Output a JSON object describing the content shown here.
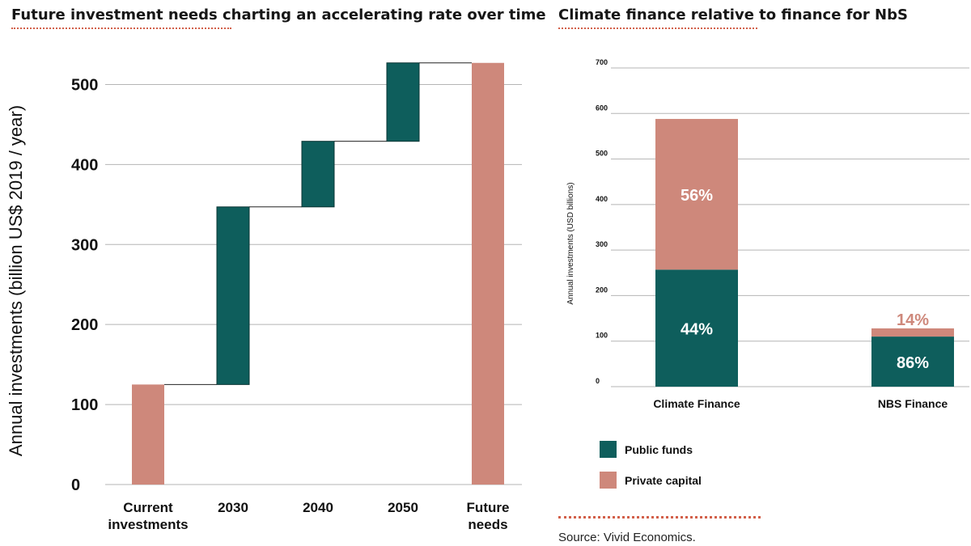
{
  "colors": {
    "public": "#0e5e5c",
    "private": "#ce887b",
    "grid": "#b5b5b5",
    "accent_dots": "#d2604a"
  },
  "left_title": "Future investment needs charting an accelerating rate over time",
  "right_title": "Climate finance relative to finance for NbS",
  "source": "Source: Vivid Economics.",
  "chart_data": [
    {
      "type": "bar",
      "subtype": "waterfall",
      "title": "Future investment needs charting an accelerating rate over time",
      "xlabel": "",
      "ylabel": "Annual investments (billion US$ 2019 / year)",
      "ylim": [
        0,
        550
      ],
      "yticks": [
        0,
        100,
        200,
        300,
        400,
        500
      ],
      "grid": true,
      "categories": [
        [
          "Current",
          "investments"
        ],
        [
          "2030"
        ],
        [
          "2040"
        ],
        [
          "2050"
        ],
        [
          "Future",
          "needs"
        ]
      ],
      "bars": [
        {
          "base": 0,
          "top": 125,
          "kind": "total"
        },
        {
          "base": 125,
          "top": 347,
          "kind": "increment"
        },
        {
          "base": 347,
          "top": 429,
          "kind": "increment"
        },
        {
          "base": 429,
          "top": 527,
          "kind": "increment"
        },
        {
          "base": 0,
          "top": 527,
          "kind": "total"
        }
      ]
    },
    {
      "type": "bar",
      "subtype": "stacked",
      "title": "Climate finance relative to finance for NbS",
      "xlabel": "",
      "ylabel": "Annual investments (USD billions)",
      "ylim": [
        0,
        700
      ],
      "yticks": [
        0,
        100,
        200,
        300,
        400,
        500,
        600,
        700
      ],
      "grid": true,
      "categories": [
        "Climate Finance",
        "NBS Finance"
      ],
      "series": [
        {
          "name": "Public funds",
          "values": [
            257,
            110
          ],
          "labels": [
            "44%",
            "86%"
          ]
        },
        {
          "name": "Private capital",
          "values": [
            331,
            18
          ],
          "labels": [
            "56%",
            "14%"
          ]
        }
      ],
      "legend": "bottom-left"
    }
  ]
}
